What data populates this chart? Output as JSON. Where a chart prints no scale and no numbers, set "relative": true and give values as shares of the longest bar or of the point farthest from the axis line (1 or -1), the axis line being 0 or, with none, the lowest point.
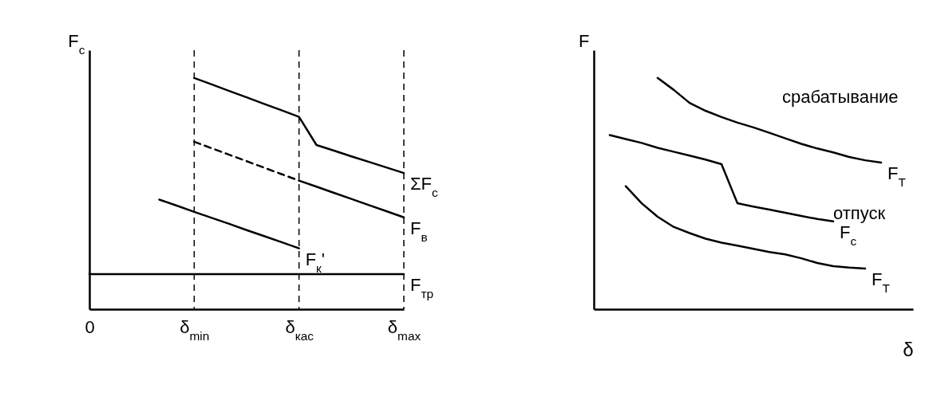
{
  "chart_data": [
    {
      "type": "line",
      "ylabel": "F$_{c}$",
      "relative": true,
      "categories": [
        "0",
        null,
        null,
        null,
        null,
        null,
        "δ$_{min}$",
        null,
        null,
        null,
        null,
        null,
        "δ$_{кас}$",
        null,
        null,
        null,
        null,
        null,
        "δ$_{max}$"
      ],
      "ref_lines": [
        {
          "axis": "x",
          "value": "δ$_{min}$",
          "line_style": "dashed",
          "color": "#000000"
        },
        {
          "axis": "x",
          "value": "δ$_{кас}$",
          "line_style": "dashed",
          "color": "#000000"
        },
        {
          "axis": "x",
          "value": "δ$_{max}$",
          "line_style": "dashed",
          "color": "#000000"
        }
      ],
      "series": [
        {
          "name": "ΣF$_{c}$",
          "color": "#000000",
          "values": [
            null,
            null,
            null,
            null,
            null,
            null,
            1.0,
            0.972,
            0.944,
            0.916,
            0.888,
            0.86,
            0.832,
            0.71,
            0.686,
            0.661,
            0.637,
            0.613,
            0.589
          ]
        },
        {
          "color": "#000000",
          "line_style": "dashed",
          "values": [
            null,
            null,
            null,
            null,
            null,
            null,
            0.724,
            0.696,
            0.668,
            0.64,
            0.612,
            0.584,
            0.556,
            null,
            null,
            null,
            null,
            null,
            null
          ]
        },
        {
          "name": "F$_{в}$",
          "color": "#000000",
          "values": [
            null,
            null,
            null,
            null,
            null,
            null,
            null,
            null,
            null,
            null,
            null,
            null,
            0.556,
            0.53,
            0.503,
            0.477,
            0.45,
            0.424,
            0.397
          ]
        },
        {
          "name": "F$_{к}$'",
          "color": "#000000",
          "values": [
            null,
            null,
            null,
            null,
            0.474,
            0.448,
            0.421,
            0.395,
            0.369,
            0.342,
            0.316,
            0.29,
            0.263,
            null,
            null,
            null,
            null,
            null,
            null
          ]
        },
        {
          "name": "F$_{тр}$",
          "color": "#000000",
          "values": [
            0.152,
            0.152,
            0.152,
            0.152,
            0.152,
            0.152,
            0.152,
            0.152,
            0.152,
            0.152,
            0.152,
            0.152,
            0.152,
            0.152,
            0.152,
            0.152,
            0.152,
            0.152,
            0.152
          ]
        }
      ]
    },
    {
      "type": "line",
      "xlabel": "δ",
      "ylabel": "F",
      "relative": true,
      "categories": [
        null,
        null,
        null,
        null,
        null,
        null,
        null,
        null,
        null,
        null,
        null,
        null,
        null,
        null,
        null,
        null,
        null,
        null,
        null,
        null,
        null
      ],
      "annotations": [
        "срабатывание",
        "отпуск"
      ],
      "series": [
        {
          "name": "F$_{T}$",
          "color": "#000000",
          "values": [
            null,
            null,
            null,
            null,
            1.0,
            0.949,
            0.892,
            0.858,
            0.831,
            0.807,
            0.786,
            0.763,
            0.739,
            0.715,
            0.695,
            0.678,
            0.658,
            0.644,
            0.634,
            null,
            null
          ]
        },
        {
          "name": "F$_{c}$",
          "color": "#000000",
          "values": [
            null,
            0.753,
            0.736,
            0.719,
            0.698,
            0.681,
            0.664,
            0.647,
            0.627,
            0.458,
            0.444,
            0.431,
            0.417,
            0.403,
            0.39,
            0.38,
            null,
            null,
            null,
            null,
            null
          ]
        },
        {
          "name": "F$_{T}$",
          "color": "#000000",
          "values": [
            null,
            null,
            0.532,
            0.458,
            0.4,
            0.356,
            0.329,
            0.305,
            0.288,
            0.275,
            0.261,
            0.247,
            0.237,
            0.22,
            0.2,
            0.186,
            0.18,
            0.176,
            null,
            null,
            null
          ]
        }
      ]
    }
  ]
}
